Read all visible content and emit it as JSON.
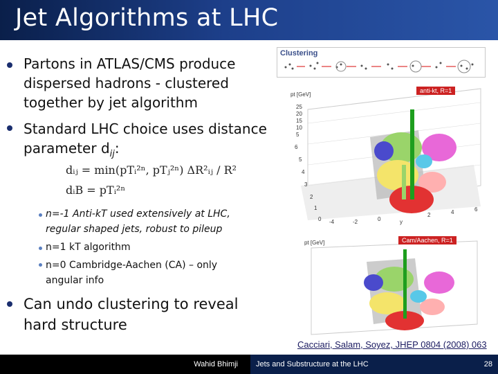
{
  "slide": {
    "title": "Jet Algorithms at LHC",
    "bullets": [
      {
        "text": "Partons in ATLAS/CMS produce dispersed hadrons - clustered together by jet algorithm"
      },
      {
        "text": " Standard LHC choice uses distance parameter d",
        "sub": "ij",
        "tail": ":"
      }
    ],
    "formula1": "dᵢⱼ = min(pTᵢ²ⁿ, pTⱼ²ⁿ) ΔR²ᵢⱼ / R²",
    "formula2": "dᵢB = pTᵢ²ⁿ",
    "subbullets": [
      {
        "text": "n=-1 Anti-kT used extensively at LHC, regular shaped jets, robust to pileup"
      },
      {
        "text": "n=1 kT algorithm"
      },
      {
        "text": "n=0 Cambridge-Aachen (CA) – only angular info"
      }
    ],
    "bullet3": "Can undo clustering to reveal hard structure"
  },
  "figure": {
    "clustering_label": "Clustering",
    "antikt_label": "anti-kt, R=1",
    "camaachen_label": "Cam/Aachen, R=1",
    "pt_axis_label": "pt [GeV]",
    "pt_ticks": [
      "25",
      "20",
      "15",
      "10",
      "5"
    ],
    "y_ticks": [
      "6",
      "4",
      "2",
      "0"
    ],
    "x_ticks": [
      "-4",
      "-2",
      "0",
      "2",
      "4",
      "6"
    ],
    "y_label": "y",
    "phi_ticks": [
      "6",
      "5",
      "4",
      "3",
      "2",
      "1",
      "0"
    ]
  },
  "citation": "Cacciari, Salam, Soyez, JHEP 0804 (2008) 063",
  "footer": {
    "author": "Wahid Bhimji",
    "talk": "Jets and Substructure at the LHC",
    "page": "28"
  },
  "colors": {
    "title_bg": "#1d3f8a",
    "footer_bg": "#000000",
    "bullet": "#1a2e6e"
  }
}
